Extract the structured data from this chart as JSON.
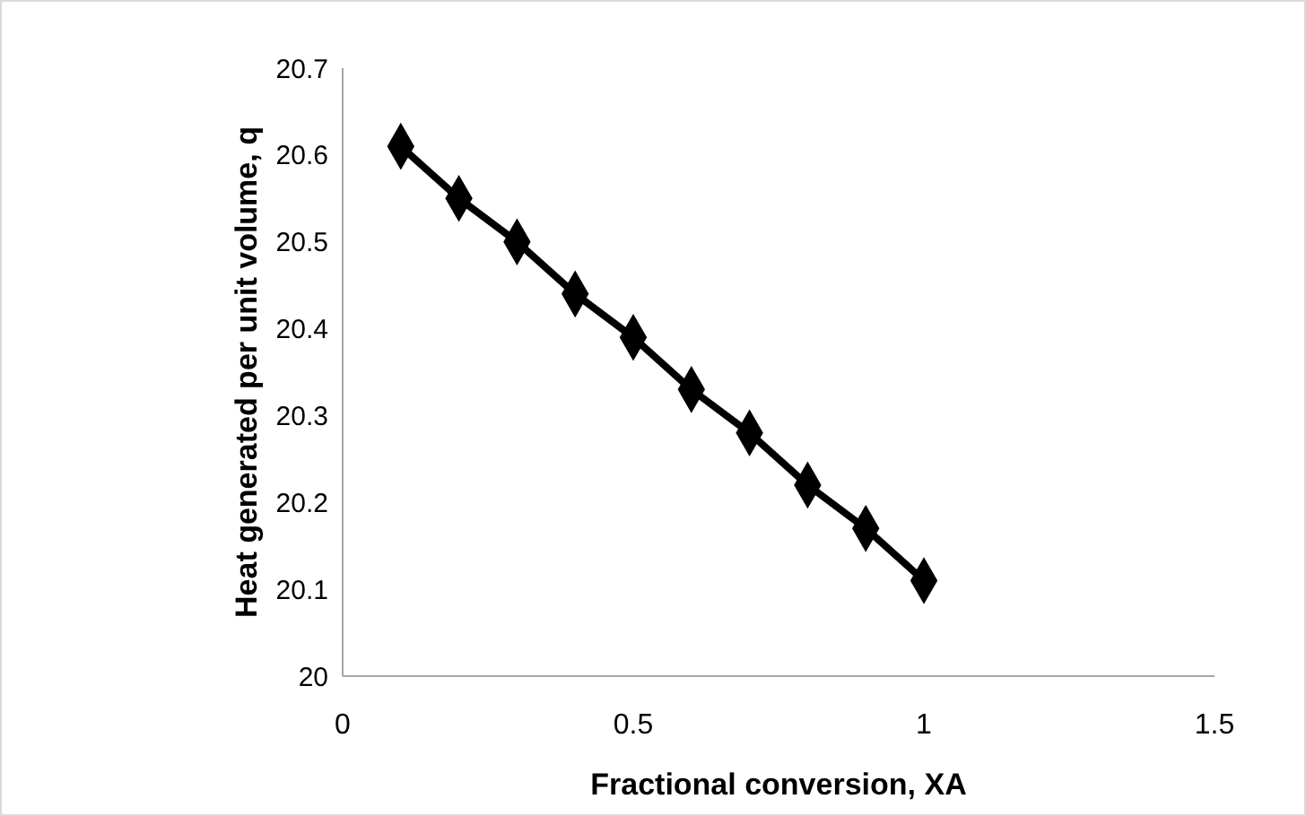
{
  "chart_data": {
    "type": "line",
    "xlabel": "Fractional conversion, XA",
    "ylabel": "Heat generated per unit volume, q",
    "x": [
      0.1,
      0.2,
      0.3,
      0.4,
      0.5,
      0.6,
      0.7,
      0.8,
      0.9,
      1.0
    ],
    "series": [
      {
        "color": "#000000",
        "values": [
          20.61,
          20.55,
          20.5,
          20.44,
          20.39,
          20.33,
          20.28,
          20.22,
          20.17,
          20.11
        ]
      }
    ],
    "xlim": [
      0,
      1.5
    ],
    "xticks": [
      0,
      0.5,
      1,
      1.5
    ],
    "ylim": [
      20,
      20.7
    ],
    "yticks": [
      20,
      20.1,
      20.2,
      20.3,
      20.4,
      20.5,
      20.6,
      20.7
    ],
    "grid": false,
    "legend": false,
    "marker": "diamond",
    "line_style": "solid"
  }
}
